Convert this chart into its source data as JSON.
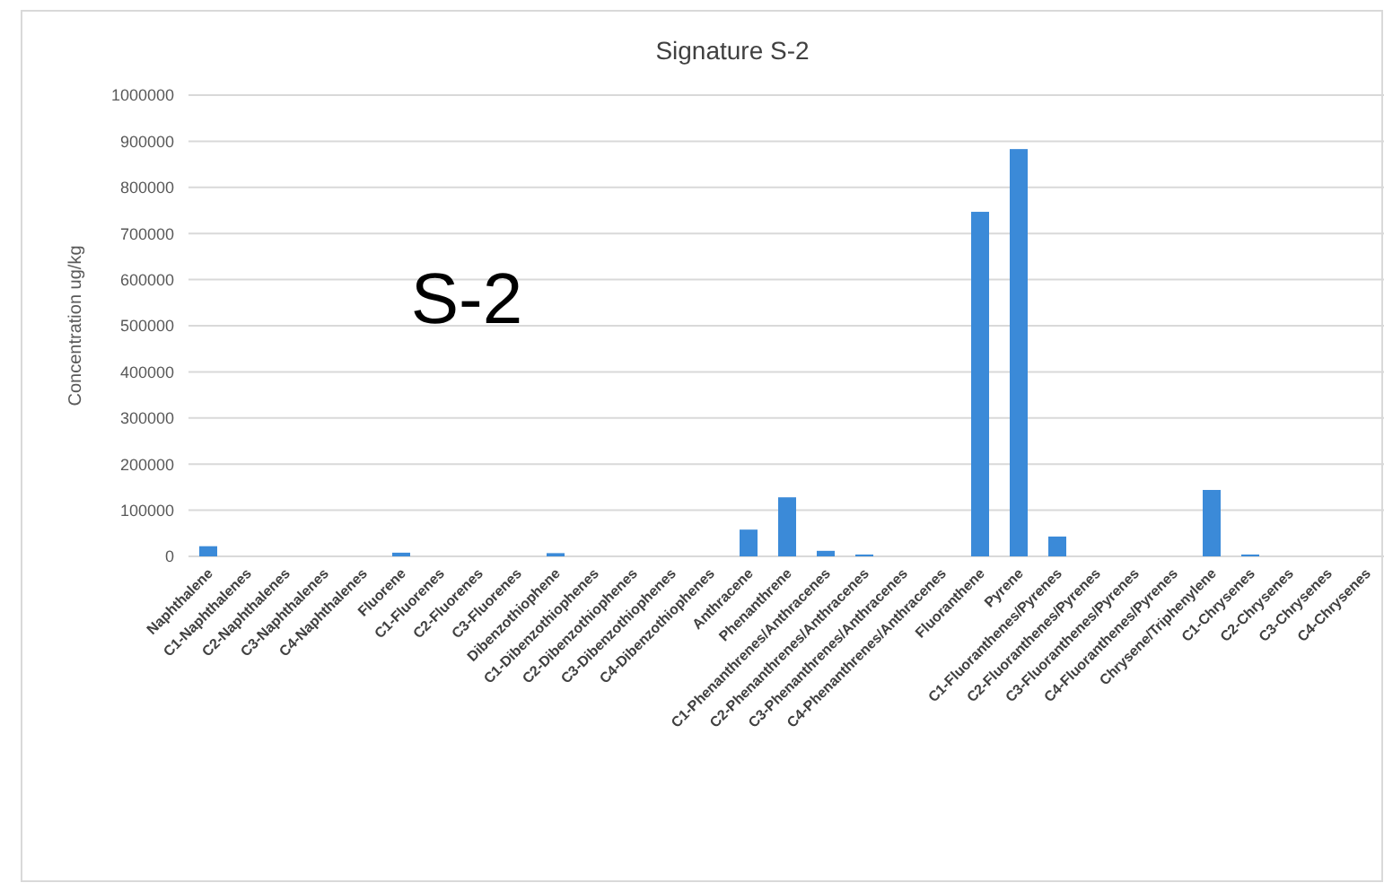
{
  "chart_data": {
    "type": "bar",
    "title": "Signature S-2",
    "ylabel": "Concentration ug/kg",
    "annotations": [
      "S-2"
    ],
    "categories": [
      "Naphthalene",
      "C1-Naphthalenes",
      "C2-Naphthalenes",
      "C3-Naphthalenes",
      "C4-Naphthalenes",
      "Fluorene",
      "C1-Fluorenes",
      "C2-Fluorenes",
      "C3-Fluorenes",
      "Dibenzothiophene",
      "C1-Dibenzothiophenes",
      "C2-Dibenzothiophenes",
      "C3-Dibenzothiophenes",
      "C4-Dibenzothiophenes",
      "Anthracene",
      "Phenanthrene",
      "C1-Phenanthrenes/Anthracenes",
      "C2-Phenanthrenes/Anthracenes",
      "C3-Phenanthrenes/Anthracenes",
      "C4-Phenanthrenes/Anthracenes",
      "Fluoranthene",
      "Pyrene",
      "C1-Fluoranthenes/Pyrenes",
      "C2-Fluoranthenes/Pyrenes",
      "C3-Fluoranthenes/Pyrenes",
      "C4-Fluoranthenes/Pyrenes",
      "Chrysene/Triphenylene",
      "C1-Chrysenes",
      "C2-Chrysenes",
      "C3-Chrysenes",
      "C4-Chrysenes"
    ],
    "values": [
      22000,
      0,
      0,
      0,
      0,
      8000,
      0,
      0,
      0,
      7000,
      0,
      0,
      0,
      0,
      58000,
      128000,
      12000,
      4000,
      0,
      0,
      747000,
      883000,
      43000,
      0,
      0,
      0,
      144000,
      4000,
      0,
      0,
      0
    ],
    "color": "#3b8ad8",
    "ylim": [
      0,
      1000000
    ],
    "yticks": [
      0,
      100000,
      200000,
      300000,
      400000,
      500000,
      600000,
      700000,
      800000,
      900000,
      1000000
    ],
    "grid": "y"
  }
}
